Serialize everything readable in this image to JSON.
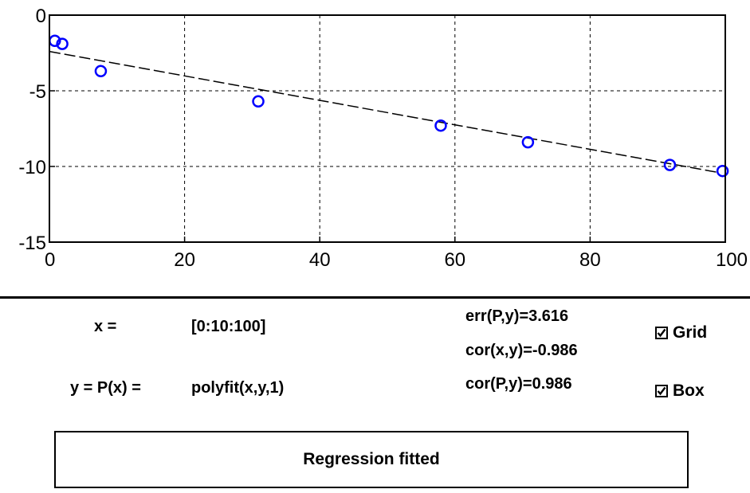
{
  "chart_data": {
    "type": "scatter",
    "x_ticks": [
      "0",
      "20",
      "40",
      "60",
      "80",
      "100"
    ],
    "y_ticks": [
      "0",
      "-5",
      "-10",
      "-15"
    ],
    "xlim": [
      0,
      100
    ],
    "ylim": [
      -15,
      0
    ],
    "grid": true,
    "box": true,
    "points": [
      {
        "x": 0.8,
        "y": -1.7
      },
      {
        "x": 1.9,
        "y": -1.9
      },
      {
        "x": 7.6,
        "y": -3.7
      },
      {
        "x": 30.9,
        "y": -5.7
      },
      {
        "x": 57.9,
        "y": -7.3
      },
      {
        "x": 70.8,
        "y": -8.4
      },
      {
        "x": 91.8,
        "y": -9.9
      },
      {
        "x": 99.6,
        "y": -10.3
      }
    ],
    "fit_line": {
      "x": [
        0,
        99
      ],
      "y": [
        -2.4,
        -10.4
      ]
    },
    "marker_color": "#0000ff",
    "line_color": "#000000"
  },
  "panel": {
    "x_label": "x =",
    "x_expr": "[0:10:100]",
    "y_label": "y = P(x) =",
    "y_expr": "polyfit(x,y,1)",
    "err": "err(P,y)=3.616",
    "cor_xy": "cor(x,y)=-0.986",
    "cor_py": "cor(P,y)=0.986",
    "grid_label": "Grid",
    "grid_checked": true,
    "box_label": "Box",
    "box_checked": true,
    "status": "Regression fitted"
  }
}
